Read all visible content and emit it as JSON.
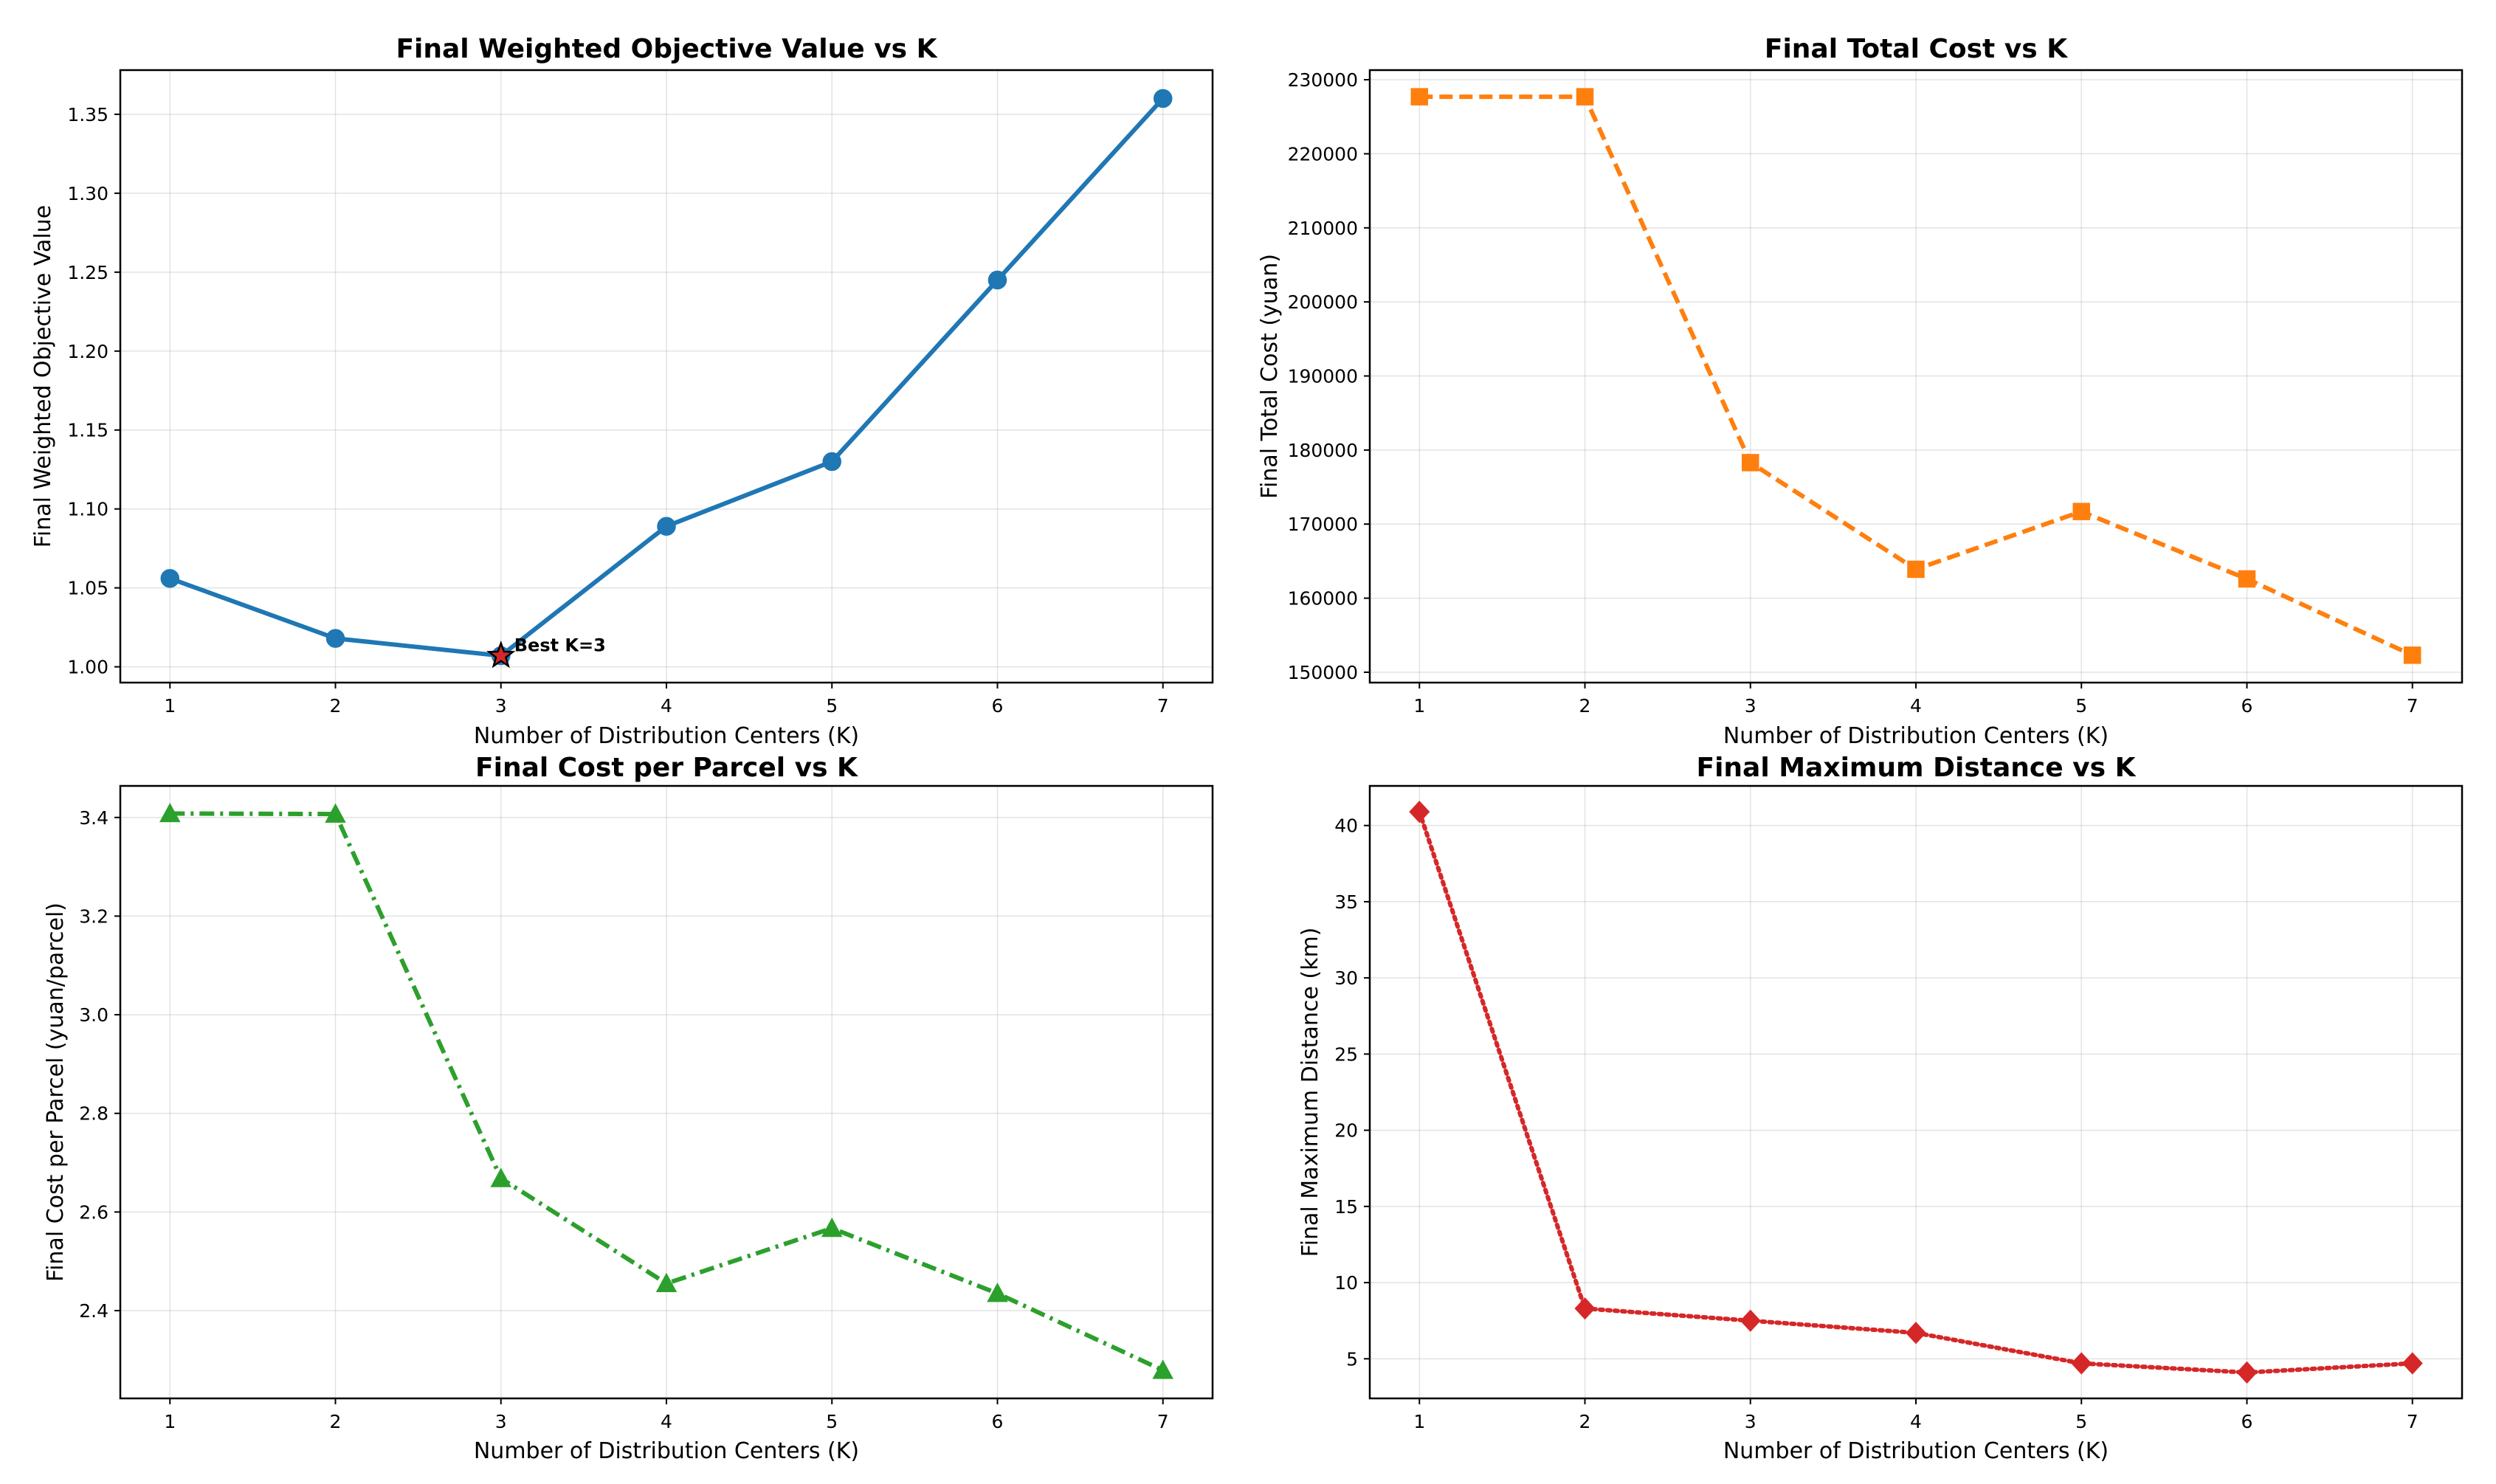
{
  "chart_data": [
    {
      "type": "line",
      "title": "Final Weighted Objective Value vs K",
      "xlabel": "Number of Distribution Centers (K)",
      "ylabel": "Final Weighted Objective Value",
      "x": [
        1,
        2,
        3,
        4,
        5,
        6,
        7
      ],
      "series": [
        {
          "values": [
            1.056,
            1.018,
            1.007,
            1.089,
            1.13,
            1.245,
            1.36
          ],
          "color": "#1f77b4",
          "line_style": "solid",
          "marker": "circle"
        }
      ],
      "xlim": [
        0.7,
        7.3
      ],
      "ylim": [
        0.99,
        1.378
      ],
      "yticks": [
        1.0,
        1.05,
        1.1,
        1.15,
        1.2,
        1.25,
        1.3,
        1.35
      ],
      "ytick_labels": [
        "1.00",
        "1.05",
        "1.10",
        "1.15",
        "1.20",
        "1.25",
        "1.30",
        "1.35"
      ],
      "grid": true,
      "annotation": {
        "text": "Best K=3",
        "x": 3,
        "y": 1.007,
        "marker": "star",
        "marker_color": "#d62728"
      }
    },
    {
      "type": "line",
      "title": "Final Total Cost vs K",
      "xlabel": "Number of Distribution Centers (K)",
      "ylabel": "Final Total Cost (yuan)",
      "x": [
        1,
        2,
        3,
        4,
        5,
        6,
        7
      ],
      "series": [
        {
          "values": [
            227700,
            227700,
            178300,
            163900,
            171700,
            162600,
            152300
          ],
          "color": "#ff7f0e",
          "line_style": "dashed",
          "marker": "square"
        }
      ],
      "xlim": [
        0.7,
        7.3
      ],
      "ylim": [
        148600,
        231300
      ],
      "yticks": [
        150000,
        160000,
        170000,
        180000,
        190000,
        200000,
        210000,
        220000,
        230000
      ],
      "ytick_labels": [
        "150000",
        "160000",
        "170000",
        "180000",
        "190000",
        "200000",
        "210000",
        "220000",
        "230000"
      ],
      "grid": true
    },
    {
      "type": "line",
      "title": "Final Cost per Parcel vs K",
      "xlabel": "Number of Distribution Centers (K)",
      "ylabel": "Final Cost per Parcel (yuan/parcel)",
      "x": [
        1,
        2,
        3,
        4,
        5,
        6,
        7
      ],
      "series": [
        {
          "values": [
            3.408,
            3.407,
            2.668,
            2.455,
            2.567,
            2.435,
            2.279
          ],
          "color": "#2ca02c",
          "line_style": "dashdot",
          "marker": "triangle"
        }
      ],
      "xlim": [
        0.7,
        7.3
      ],
      "ylim": [
        2.222,
        3.464
      ],
      "yticks": [
        2.4,
        2.6,
        2.8,
        3.0,
        3.2,
        3.4
      ],
      "ytick_labels": [
        "2.4",
        "2.6",
        "2.8",
        "3.0",
        "3.2",
        "3.4"
      ],
      "grid": true
    },
    {
      "type": "line",
      "title": "Final Maximum Distance vs K",
      "xlabel": "Number of Distribution Centers (K)",
      "ylabel": "Final Maximum Distance (km)",
      "x": [
        1,
        2,
        3,
        4,
        5,
        6,
        7
      ],
      "series": [
        {
          "values": [
            40.9,
            8.3,
            7.5,
            6.7,
            4.7,
            4.1,
            4.7
          ],
          "color": "#d62728",
          "line_style": "dotted",
          "marker": "diamond"
        }
      ],
      "xlim": [
        0.7,
        7.3
      ],
      "ylim": [
        2.4,
        42.6
      ],
      "yticks": [
        5,
        10,
        15,
        20,
        25,
        30,
        35,
        40
      ],
      "ytick_labels": [
        "5",
        "10",
        "15",
        "20",
        "25",
        "30",
        "35",
        "40"
      ],
      "grid": true
    }
  ]
}
